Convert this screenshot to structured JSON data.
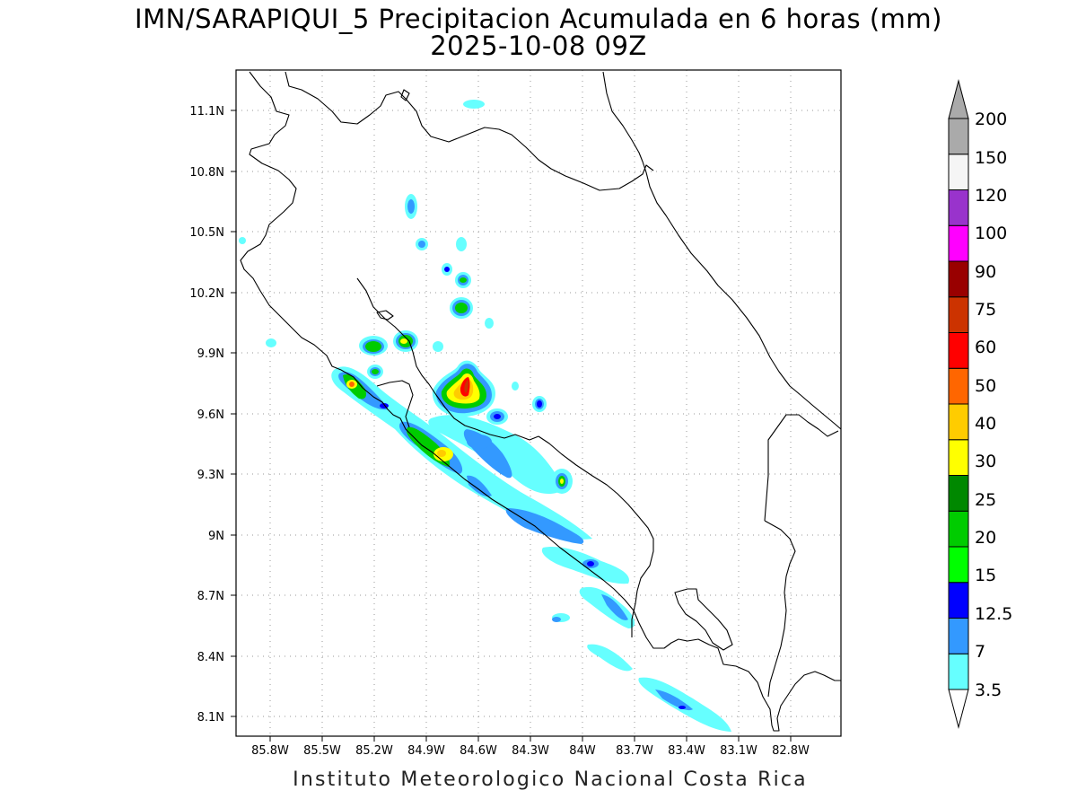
{
  "title_line1": "IMN/SARAPIQUI_5 Precipitacion Acumulada en 6 horas (mm)",
  "title_line2": "2025-10-08 09Z",
  "footer": "Instituto Meteorologico Nacional Costa Rica",
  "map": {
    "lon_range": [
      -86.0,
      -83.0
    ],
    "lat_range": [
      8.0,
      11.2
    ],
    "grid": "dotted",
    "lon_ticks": [
      "85.8W",
      "85.5W",
      "85.2W",
      "84.9W",
      "84.6W",
      "84.3W",
      "84W",
      "83.7W",
      "83.4W",
      "83.1W",
      "82.8W"
    ],
    "lat_ticks": [
      "11.1N",
      "10.8N",
      "10.5N",
      "10.2N",
      "9.9N",
      "9.6N",
      "9.3N",
      "9N",
      "8.7N",
      "8.4N",
      "8.1N"
    ]
  },
  "colorbar": {
    "labels": [
      "3.5",
      "7",
      "12.5",
      "15",
      "20",
      "25",
      "30",
      "40",
      "50",
      "60",
      "75",
      "90",
      "100",
      "120",
      "150",
      "200"
    ],
    "colors": [
      "#66ffff",
      "#3399ff",
      "#0000ff",
      "#00ff00",
      "#00cc00",
      "#008800",
      "#ffff00",
      "#ffcc00",
      "#ff6600",
      "#ff0000",
      "#cc3300",
      "#990000",
      "#ff00ff",
      "#9933cc",
      "#f5f5f5",
      "#aaaaaa"
    ]
  }
}
